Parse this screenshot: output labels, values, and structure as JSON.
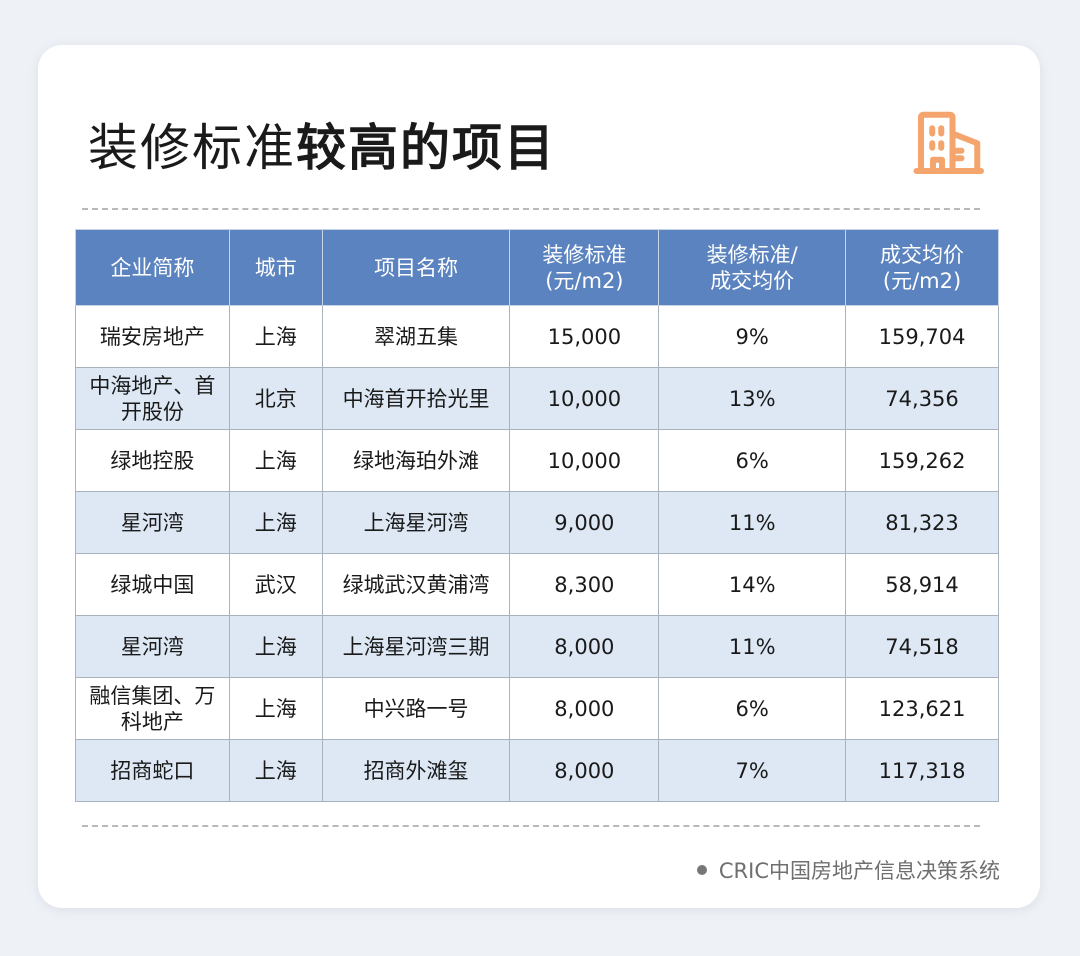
{
  "title": {
    "normal": "装修标准",
    "bold": "较高的项目"
  },
  "icon": "building-icon",
  "accent_color": "#f3a56d",
  "header_color": "#5b83bf",
  "table": {
    "headers": [
      "企业简称",
      "城市",
      "项目名称",
      "装修标准\n(元/m2)",
      "装修标准/\n成交均价",
      "成交均价\n(元/m2)"
    ],
    "rows": [
      [
        "瑞安房地产",
        "上海",
        "翠湖五集",
        "15,000",
        "9%",
        "159,704"
      ],
      [
        "中海地产、首开股份",
        "北京",
        "中海首开拾光里",
        "10,000",
        "13%",
        "74,356"
      ],
      [
        "绿地控股",
        "上海",
        "绿地海珀外滩",
        "10,000",
        "6%",
        "159,262"
      ],
      [
        "星河湾",
        "上海",
        "上海星河湾",
        "9,000",
        "11%",
        "81,323"
      ],
      [
        "绿城中国",
        "武汉",
        "绿城武汉黄浦湾",
        "8,300",
        "14%",
        "58,914"
      ],
      [
        "星河湾",
        "上海",
        "上海星河湾三期",
        "8,000",
        "11%",
        "74,518"
      ],
      [
        "融信集团、万科地产",
        "上海",
        "中兴路一号",
        "8,000",
        "6%",
        "123,621"
      ],
      [
        "招商蛇口",
        "上海",
        "招商外滩玺",
        "8,000",
        "7%",
        "117,318"
      ]
    ]
  },
  "footer": "CRIC中国房地产信息决策系统"
}
